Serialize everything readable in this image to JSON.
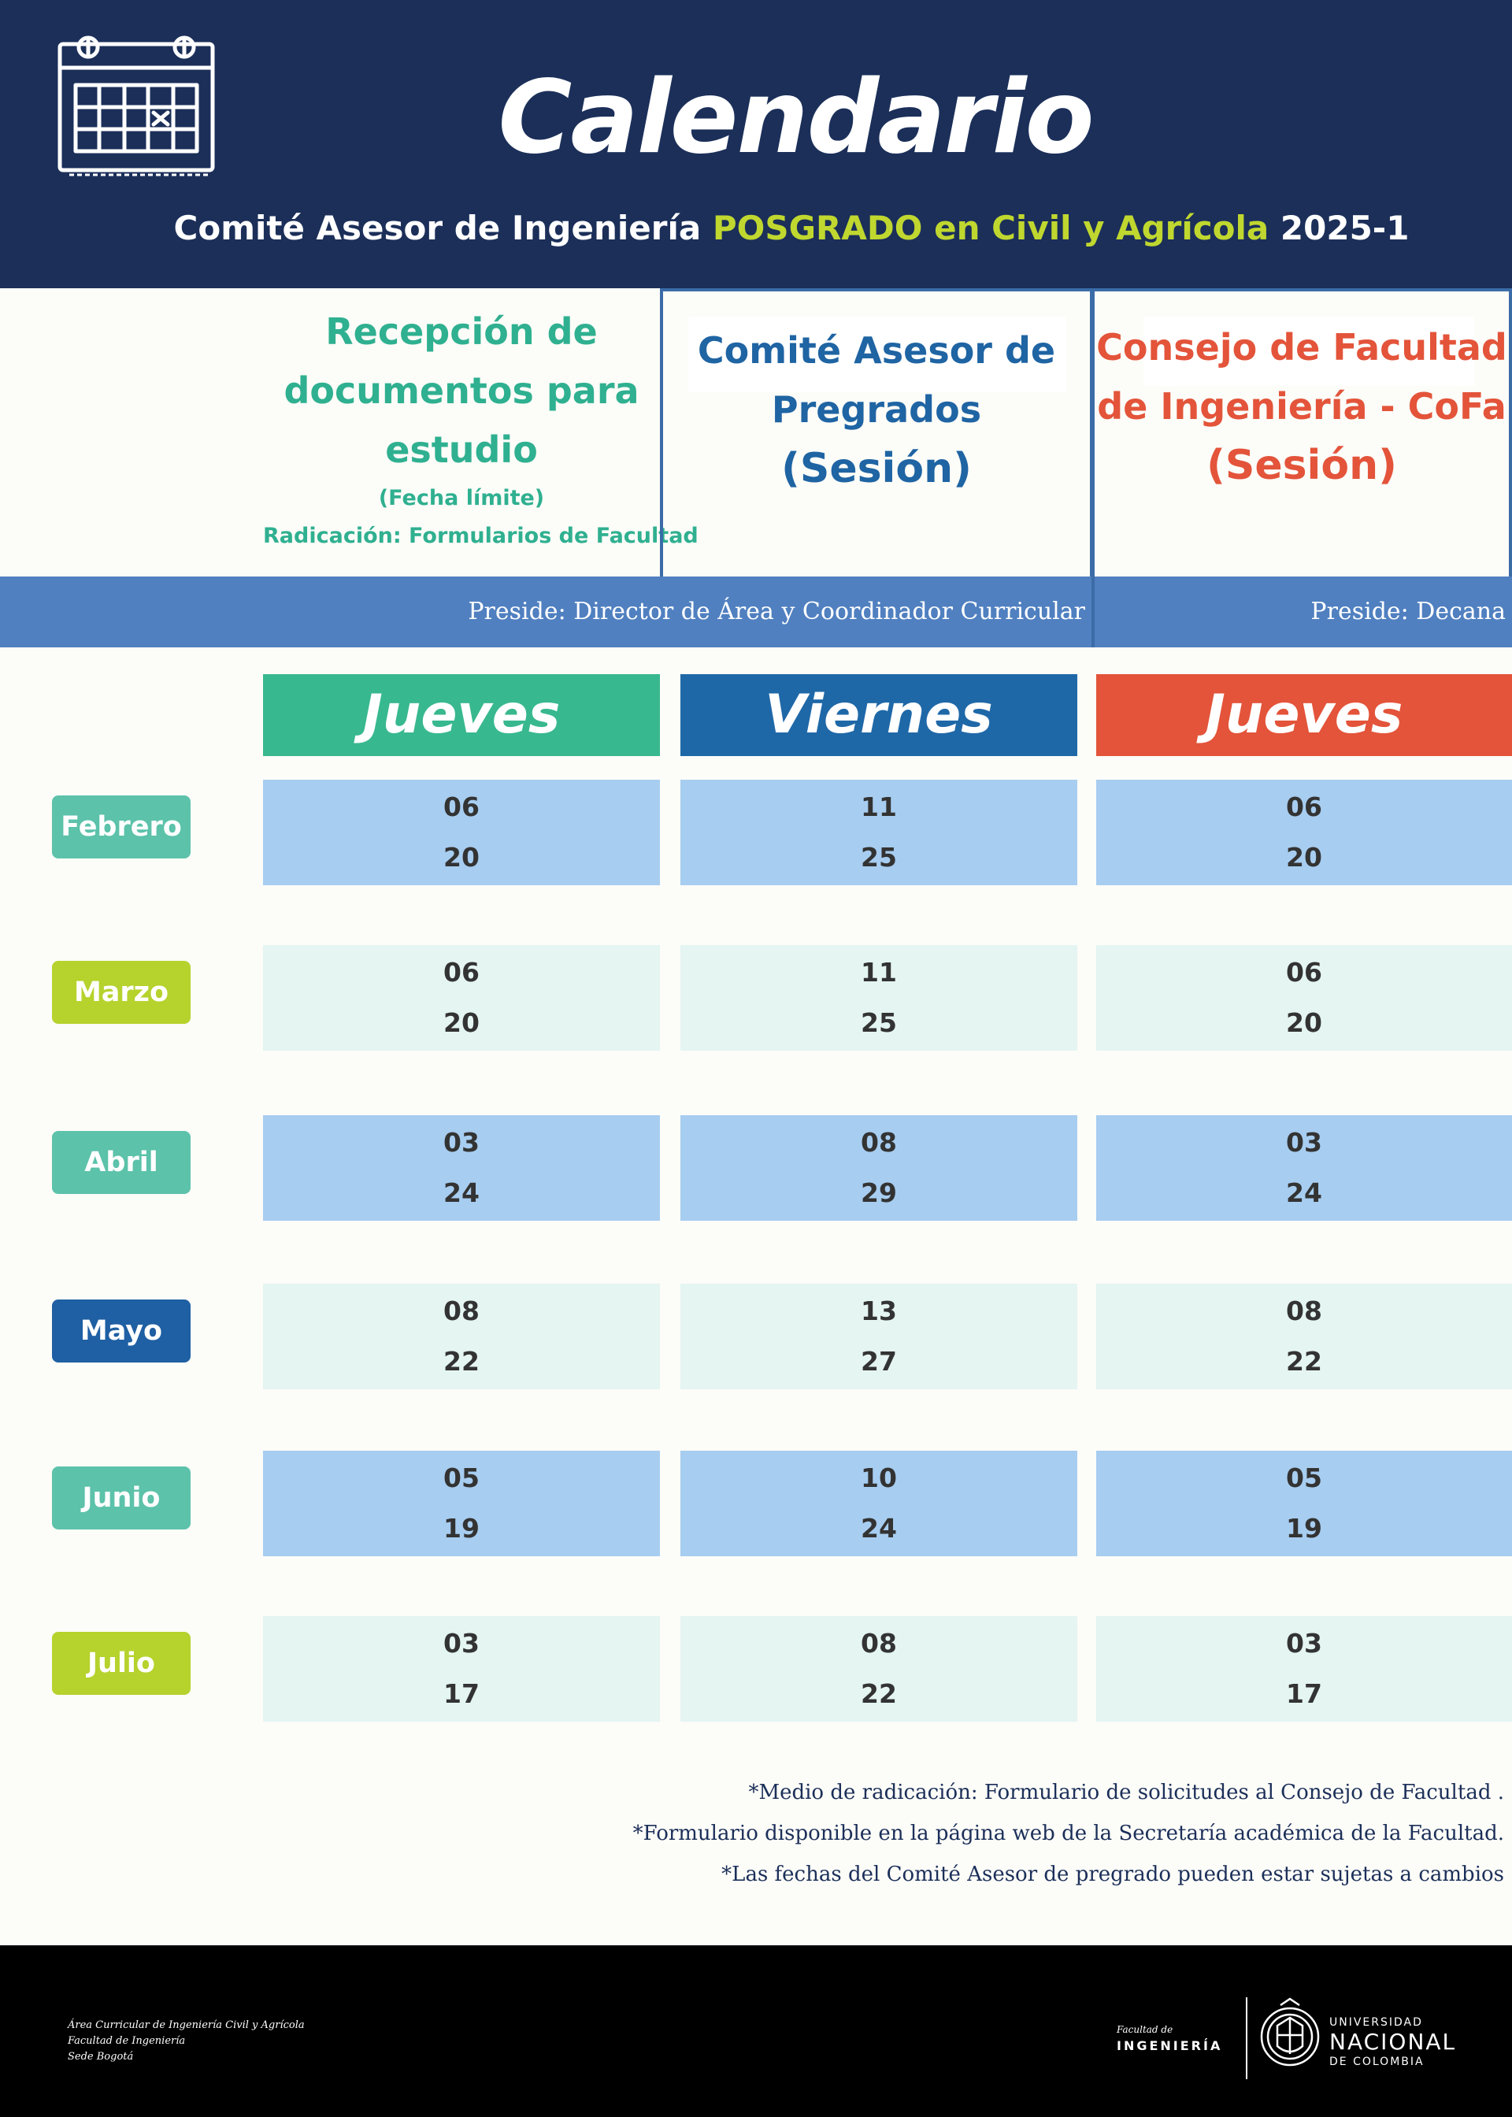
{
  "header": {
    "title": "Calendario",
    "subtitle_pre": "Comité Asesor de Ingeniería ",
    "subtitle_highlight": "POSGRADO en Civil y Agrícola",
    "subtitle_post": " 2025-1"
  },
  "columns": [
    {
      "title": "Recepción de documentos para estudio",
      "note": "(Fecha límite)",
      "sub": "Radicación: Formularios de Facultad",
      "day": "Jueves",
      "color": "#38b88f"
    },
    {
      "title": "Comité Asesor de Pregrados",
      "session": "(Sesión)",
      "day": "Viernes",
      "color": "#1f68a8"
    },
    {
      "title": "Consejo de Facultad de Ingeniería - CoFa",
      "session": "(Sesión)",
      "day": "Jueves",
      "color": "#e3543a"
    }
  ],
  "preside": {
    "left": "Preside: Director de Área y Coordinador Curricular",
    "right": "Preside: Decana"
  },
  "months": [
    {
      "name": "Febrero",
      "color": "#5cc2aa",
      "shade": "dark",
      "col1": [
        "06",
        "20"
      ],
      "col2": [
        "11",
        "25"
      ],
      "col3": [
        "06",
        "20"
      ]
    },
    {
      "name": "Marzo",
      "color": "#b6d22d",
      "shade": "light",
      "col1": [
        "06",
        "20"
      ],
      "col2": [
        "11",
        "25"
      ],
      "col3": [
        "06",
        "20"
      ]
    },
    {
      "name": "Abril",
      "color": "#5cc2aa",
      "shade": "dark",
      "col1": [
        "03",
        "24"
      ],
      "col2": [
        "08",
        "29"
      ],
      "col3": [
        "03",
        "24"
      ]
    },
    {
      "name": "Mayo",
      "color": "#1f5fa3",
      "shade": "light",
      "col1": [
        "08",
        "22"
      ],
      "col2": [
        "13",
        "27"
      ],
      "col3": [
        "08",
        "22"
      ]
    },
    {
      "name": "Junio",
      "color": "#5cc2aa",
      "shade": "dark",
      "col1": [
        "05",
        "19"
      ],
      "col2": [
        "10",
        "24"
      ],
      "col3": [
        "05",
        "19"
      ]
    },
    {
      "name": "Julio",
      "color": "#b6d22d",
      "shade": "light",
      "col1": [
        "03",
        "17"
      ],
      "col2": [
        "08",
        "22"
      ],
      "col3": [
        "03",
        "17"
      ]
    }
  ],
  "notes": [
    "*Medio de radicación: Formulario de solicitudes al Consejo de Facultad .",
    "*Formulario disponible en la página web de la Secretaría académica de la Facultad.",
    "*Las fechas del Comité Asesor de pregrado pueden estar sujetas a cambios"
  ],
  "footer": {
    "left_lines": [
      "Área Curricular de Ingeniería Civil y Agrícola",
      "Facultad de Ingeniería",
      "Sede Bogotá"
    ],
    "faculty_pre": "Facultad de",
    "faculty_name": "INGENIERÍA",
    "university_line1": "UNIVERSIDAD",
    "university_line2": "NACIONAL",
    "university_line3": "DE COLOMBIA"
  }
}
